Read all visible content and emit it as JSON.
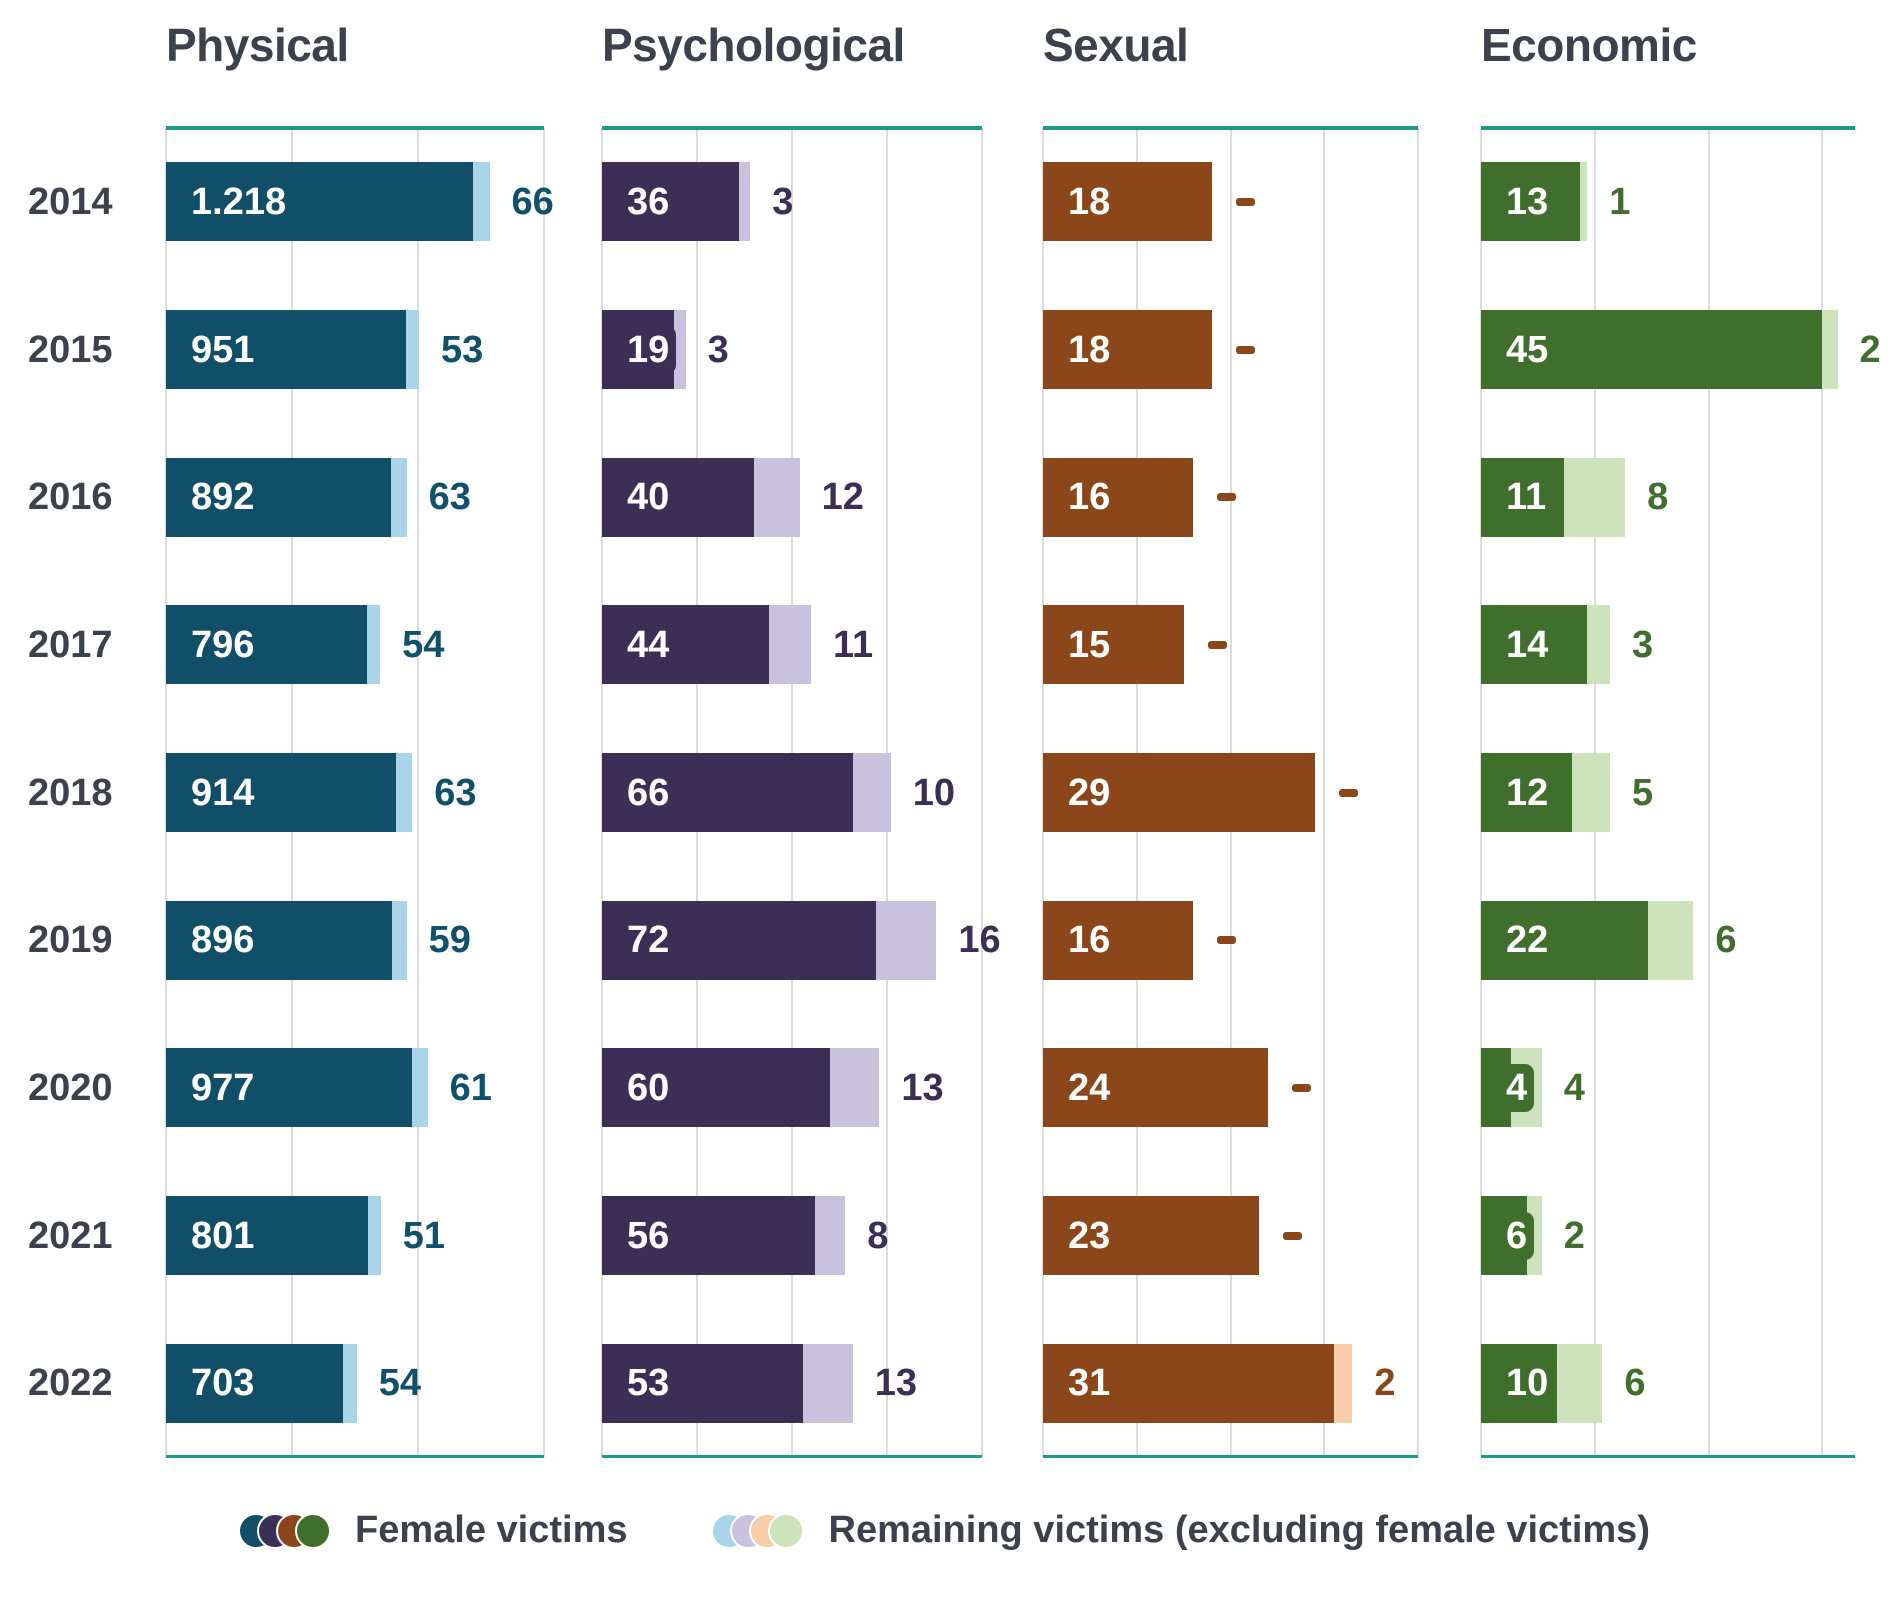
{
  "page": {
    "background": "#FFFFFF",
    "text_color": "#3C414B",
    "gridline_color": "#DCDCDC",
    "axis_line_color": "#1A998D"
  },
  "years": [
    "2014",
    "2015",
    "2016",
    "2017",
    "2018",
    "2019",
    "2020",
    "2021",
    "2022"
  ],
  "legend": {
    "entries": [
      {
        "label": "Female victims",
        "swatch_colors": [
          "#114E68",
          "#3B2F55",
          "#8B4619",
          "#3F6E2D"
        ]
      },
      {
        "label": "Remaining victims (excluding female victims)",
        "swatch_colors": [
          "#A9D4EA",
          "#C9C2DF",
          "#F8CDA7",
          "#CCE3BC"
        ]
      }
    ]
  },
  "chart_data": [
    {
      "type": "bar",
      "orientation": "horizontal",
      "title": "Physical",
      "categories": [
        "2014",
        "2015",
        "2016",
        "2017",
        "2018",
        "2019",
        "2020",
        "2021",
        "2022"
      ],
      "series": [
        {
          "name": "Female victims",
          "values": [
            1218,
            951,
            892,
            796,
            914,
            896,
            977,
            801,
            703
          ],
          "labels": [
            "1.218",
            "951",
            "892",
            "796",
            "914",
            "896",
            "977",
            "801",
            "703"
          ]
        },
        {
          "name": "Remaining victims (excluding female victims)",
          "values": [
            66,
            53,
            63,
            54,
            63,
            59,
            61,
            51,
            54
          ],
          "labels": [
            "66",
            "53",
            "63",
            "54",
            "63",
            "59",
            "61",
            "51",
            "54"
          ]
        }
      ],
      "axis_max": 1500,
      "gridline_values": [
        0,
        500,
        1000,
        1500
      ],
      "grid_on": true,
      "colors": {
        "female": "#114E68",
        "remaining": "#A9D4EA",
        "outside_label": "#11506B"
      }
    },
    {
      "type": "bar",
      "orientation": "horizontal",
      "title": "Psychological",
      "categories": [
        "2014",
        "2015",
        "2016",
        "2017",
        "2018",
        "2019",
        "2020",
        "2021",
        "2022"
      ],
      "series": [
        {
          "name": "Female victims",
          "values": [
            36,
            19,
            40,
            44,
            66,
            72,
            60,
            56,
            53
          ],
          "labels": [
            "36",
            "19",
            "40",
            "44",
            "66",
            "72",
            "60",
            "56",
            "53"
          ]
        },
        {
          "name": "Remaining victims (excluding female victims)",
          "values": [
            3,
            3,
            12,
            11,
            10,
            16,
            13,
            8,
            13
          ],
          "labels": [
            "3",
            "3",
            "12",
            "11",
            "10",
            "16",
            "13",
            "8",
            "13"
          ]
        }
      ],
      "axis_max": 100,
      "gridline_values": [
        0,
        25,
        50,
        75,
        100
      ],
      "grid_on": true,
      "colors": {
        "female": "#3B2F55",
        "remaining": "#C9C2DF",
        "outside_label": "#3B2F55"
      }
    },
    {
      "type": "bar",
      "orientation": "horizontal",
      "title": "Sexual",
      "categories": [
        "2014",
        "2015",
        "2016",
        "2017",
        "2018",
        "2019",
        "2020",
        "2021",
        "2022"
      ],
      "series": [
        {
          "name": "Female victims",
          "values": [
            18,
            18,
            16,
            15,
            29,
            16,
            24,
            23,
            31
          ],
          "labels": [
            "18",
            "18",
            "16",
            "15",
            "29",
            "16",
            "24",
            "23",
            "31"
          ]
        },
        {
          "name": "Remaining victims (excluding female victims)",
          "values": [
            0,
            0,
            0,
            0,
            0,
            0,
            0,
            0,
            2
          ],
          "labels": [
            "-",
            "-",
            "-",
            "-",
            "-",
            "-",
            "-",
            "-",
            "2"
          ]
        }
      ],
      "axis_max": 40,
      "gridline_values": [
        0,
        10,
        20,
        30,
        40
      ],
      "grid_on": true,
      "colors": {
        "female": "#8B4619",
        "remaining": "#F8CDA7",
        "outside_label": "#8B4619"
      }
    },
    {
      "type": "bar",
      "orientation": "horizontal",
      "title": "Economic",
      "categories": [
        "2014",
        "2015",
        "2016",
        "2017",
        "2018",
        "2019",
        "2020",
        "2021",
        "2022"
      ],
      "series": [
        {
          "name": "Female victims",
          "values": [
            13,
            45,
            11,
            14,
            12,
            22,
            4,
            6,
            10
          ],
          "labels": [
            "13",
            "45",
            "11",
            "14",
            "12",
            "22",
            "4",
            "6",
            "10"
          ]
        },
        {
          "name": "Remaining victims (excluding female victims)",
          "values": [
            1,
            2,
            8,
            3,
            5,
            6,
            4,
            2,
            6
          ],
          "labels": [
            "1",
            "2",
            "8",
            "3",
            "5",
            "6",
            "4",
            "2",
            "6"
          ]
        }
      ],
      "axis_max": 49.3,
      "gridline_values": [
        0,
        15,
        30,
        45
      ],
      "grid_on": true,
      "colors": {
        "female": "#3F6E2D",
        "remaining": "#CCE3BC",
        "outside_label": "#3F6E2D"
      }
    }
  ]
}
